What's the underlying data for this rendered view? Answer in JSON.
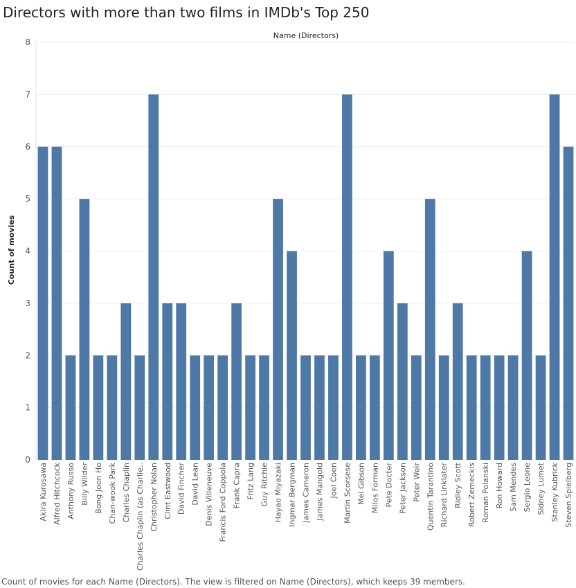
{
  "caption": "Count of movies for each Name (Directors). The view is filtered on Name (Directors), which keeps 39 members.",
  "chart_data": {
    "type": "bar",
    "title": "Directors with more than two films in IMDb's Top 250",
    "column_header": "Name (Directors)",
    "ylabel": "Count of movies",
    "xlabel": "",
    "ylim": [
      0,
      8
    ],
    "yticks": [
      0,
      1,
      2,
      3,
      4,
      5,
      6,
      7,
      8
    ],
    "grid": true,
    "bar_color": "#4e79a7",
    "categories": [
      "Akira Kurosawa",
      "Alfred Hitchcock",
      "Anthony Russo",
      "Billy Wilder",
      "Bong Joon Ho",
      "Chan-wook Park",
      "Charles Chaplin",
      "Charles Chaplin (as Charlie..",
      "Christopher Nolan",
      "Clint Eastwood",
      "David Fincher",
      "David Lean",
      "Denis Villeneuve",
      "Francis Ford Coppola",
      "Frank Capra",
      "Fritz Lang",
      "Guy Ritchie",
      "Hayao Miyazaki",
      "Ingmar Bergman",
      "James Cameron",
      "James Mangold",
      "Joel Coen",
      "Martin Scorsese",
      "Mel Gibson",
      "Milos Forman",
      "Pete Docter",
      "Peter Jackson",
      "Peter Weir",
      "Quentin Tarantino",
      "Richard Linklater",
      "Ridley Scott",
      "Robert Zemeckis",
      "Roman Polanski",
      "Ron Howard",
      "Sam Mendes",
      "Sergio Leone",
      "Sidney Lumet",
      "Stanley Kubrick",
      "Steven Spielberg"
    ],
    "values": [
      6,
      6,
      2,
      5,
      2,
      2,
      3,
      2,
      7,
      3,
      3,
      2,
      2,
      2,
      3,
      2,
      2,
      5,
      4,
      2,
      2,
      2,
      7,
      2,
      2,
      4,
      3,
      2,
      5,
      2,
      3,
      2,
      2,
      2,
      2,
      4,
      2,
      7,
      6
    ]
  }
}
